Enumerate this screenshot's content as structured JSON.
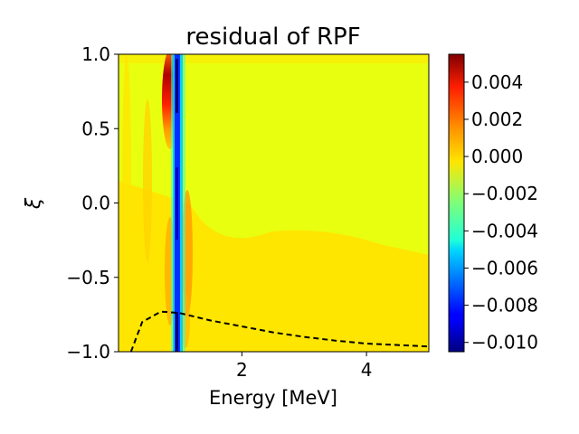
{
  "chart_data": {
    "type": "heatmap",
    "title": "residual of RPF",
    "xlabel": "Energy [MeV]",
    "ylabel": "ξ",
    "xlim": [
      0.02,
      5.0
    ],
    "ylim": [
      -1.0,
      1.0
    ],
    "x_ticks": [
      {
        "value": 2,
        "label": "2"
      },
      {
        "value": 4,
        "label": "4"
      }
    ],
    "y_ticks": [
      {
        "value": 1.0,
        "label": "1.0"
      },
      {
        "value": 0.5,
        "label": "0.5"
      },
      {
        "value": 0.0,
        "label": "0.0"
      },
      {
        "value": -0.5,
        "label": "−0.5"
      },
      {
        "value": -1.0,
        "label": "−1.0"
      }
    ],
    "colorbar": {
      "colormap": "jet",
      "vmin": -0.0105,
      "vmax": 0.0055,
      "ticks": [
        {
          "value": 0.004,
          "label": "0.004"
        },
        {
          "value": 0.002,
          "label": "0.002"
        },
        {
          "value": 0.0,
          "label": "0.000"
        },
        {
          "value": -0.002,
          "label": "−0.002"
        },
        {
          "value": -0.004,
          "label": "−0.004"
        },
        {
          "value": -0.006,
          "label": "−0.006"
        },
        {
          "value": -0.008,
          "label": "−0.008"
        },
        {
          "value": -0.01,
          "label": "−0.010"
        }
      ]
    },
    "background_residual_values": {
      "upper_region": 0.0,
      "lower_region": 0.0005
    },
    "features": [
      {
        "name": "negative-band",
        "energy": 0.95,
        "xi_range": [
          -1.0,
          1.0
        ],
        "min_value": -0.0103
      },
      {
        "name": "positive-peak",
        "energy": 0.78,
        "xi_center": 0.75,
        "max_value": 0.0052
      }
    ],
    "dashed_curve": {
      "style": "dashed",
      "color": "#000000",
      "points": [
        {
          "energy": 0.22,
          "xi": -1.0
        },
        {
          "energy": 0.4,
          "xi": -0.8
        },
        {
          "energy": 0.7,
          "xi": -0.73
        },
        {
          "energy": 1.0,
          "xi": -0.74
        },
        {
          "energy": 1.5,
          "xi": -0.79
        },
        {
          "energy": 2.0,
          "xi": -0.83
        },
        {
          "energy": 2.5,
          "xi": -0.87
        },
        {
          "energy": 3.0,
          "xi": -0.9
        },
        {
          "energy": 3.5,
          "xi": -0.925
        },
        {
          "energy": 4.0,
          "xi": -0.945
        },
        {
          "energy": 4.5,
          "xi": -0.955
        },
        {
          "energy": 5.0,
          "xi": -0.965
        }
      ]
    }
  }
}
